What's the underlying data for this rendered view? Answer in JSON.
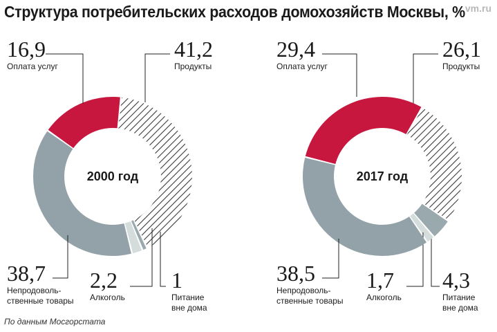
{
  "title": "Структура потребительских расходов домохозяйств Москвы, %",
  "watermark": "vm.ru",
  "source": "По данным Мосгорстата",
  "colors": {
    "services": "#c8173f",
    "food": "#ffffff",
    "nonfood": "#93a2a8",
    "alcohol": "#d4dcdc",
    "eatout": "#9aa9ae",
    "hatch": "#3a3a3a"
  },
  "chart_data": [
    {
      "type": "pie",
      "variant": "donut",
      "center_label": "2000 год",
      "slices": [
        {
          "key": "food",
          "value": 41.2,
          "label_num": "41,2",
          "label_lines": [
            "Продукты"
          ]
        },
        {
          "key": "eatout",
          "value": 1,
          "label_num": "1",
          "label_lines": [
            "Питание",
            "вне дома"
          ]
        },
        {
          "key": "alcohol",
          "value": 2.2,
          "label_num": "2,2",
          "label_lines": [
            "Алкоголь"
          ]
        },
        {
          "key": "nonfood",
          "value": 38.7,
          "label_num": "38,7",
          "label_lines": [
            "Непродоволь-",
            "ственные товары"
          ]
        },
        {
          "key": "services",
          "value": 16.9,
          "label_num": "16,9",
          "label_lines": [
            "Оплата услуг"
          ]
        }
      ]
    },
    {
      "type": "pie",
      "variant": "donut",
      "center_label": "2017 год",
      "slices": [
        {
          "key": "food",
          "value": 26.1,
          "label_num": "26,1",
          "label_lines": [
            "Продукты"
          ]
        },
        {
          "key": "eatout",
          "value": 4.3,
          "label_num": "4,3",
          "label_lines": [
            "Питание",
            "вне дома"
          ]
        },
        {
          "key": "alcohol",
          "value": 1.7,
          "label_num": "1,7",
          "label_lines": [
            "Алкоголь"
          ]
        },
        {
          "key": "nonfood",
          "value": 38.5,
          "label_num": "38,5",
          "label_lines": [
            "Непродоволь-",
            "ственные товары"
          ]
        },
        {
          "key": "services",
          "value": 29.4,
          "label_num": "29,4",
          "label_lines": [
            "Оплата услуг"
          ]
        }
      ]
    }
  ]
}
